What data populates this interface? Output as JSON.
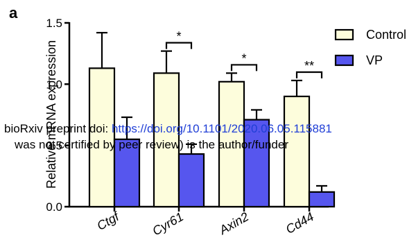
{
  "panel_label": "a",
  "watermark": {
    "line1_prefix": "bioRxiv preprint doi: ",
    "line1_url": "https://doi.org/10.1101/2020.06.05.115881",
    "line2": "was not certified by peer review) is the author/funder"
  },
  "colors": {
    "control": "#fdfddc",
    "vp": "#5656ee",
    "axis": "#000000"
  },
  "chart_data": {
    "type": "bar",
    "title": "",
    "xlabel": "",
    "ylabel": "Relative mRNA expression",
    "ylim": [
      0,
      1.5
    ],
    "yticks": [
      "0.0",
      "0.5",
      "1.0",
      "1.5"
    ],
    "categories": [
      "Ctgf",
      "Cyr61",
      "Axin2",
      "Cd44"
    ],
    "series": [
      {
        "name": "Control",
        "values": [
          1.13,
          1.09,
          1.02,
          0.9
        ],
        "errors": [
          0.29,
          0.18,
          0.07,
          0.13
        ]
      },
      {
        "name": "VP",
        "values": [
          0.55,
          0.43,
          0.71,
          0.12
        ],
        "errors": [
          0.18,
          0.08,
          0.08,
          0.05
        ]
      }
    ],
    "significance": [
      "",
      "*",
      "*",
      "**"
    ],
    "legend_position": "top-right"
  }
}
